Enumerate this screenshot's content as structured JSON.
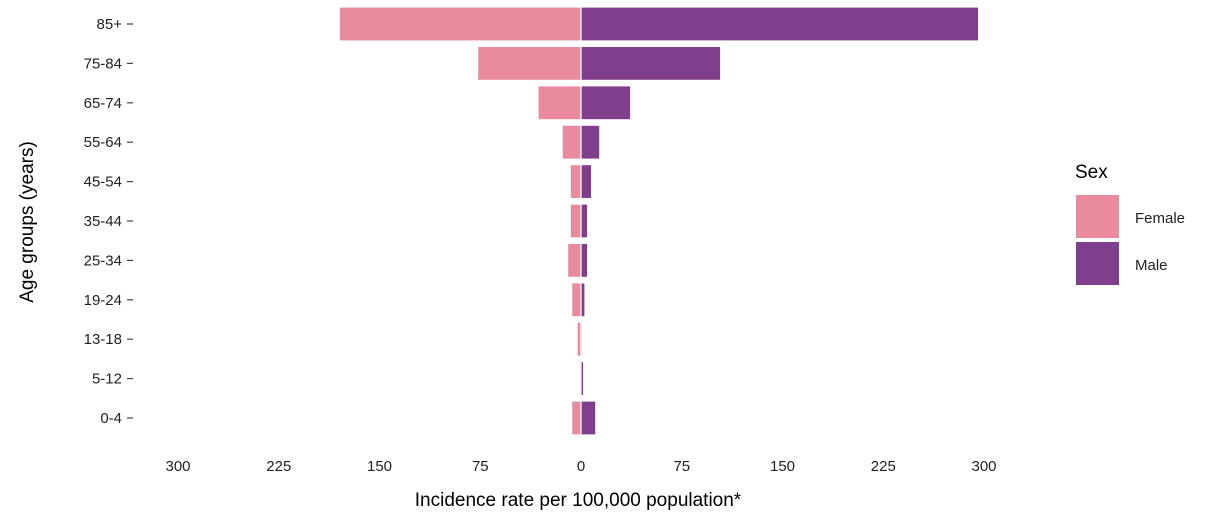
{
  "chart_data": {
    "type": "bar",
    "orientation": "horizontal-diverging",
    "title": "",
    "xlabel": "Incidence rate per 100,000 population*",
    "ylabel": "Age groups (years)",
    "xlim": [
      -300,
      300
    ],
    "x_ticks": [
      -300,
      -225,
      -150,
      -75,
      0,
      75,
      150,
      225,
      300
    ],
    "x_tick_labels": [
      "300",
      "225",
      "150",
      "75",
      "0",
      "75",
      "150",
      "225",
      "300"
    ],
    "categories": [
      "85+",
      "75-84",
      "65-74",
      "55-64",
      "45-54",
      "35-44",
      "25-34",
      "19-24",
      "13-18",
      "5-12",
      "0-4"
    ],
    "series": [
      {
        "name": "Female",
        "side": "left",
        "color": "#EA8A9E",
        "values": [
          180,
          77,
          32,
          14,
          8,
          8,
          10,
          7,
          3,
          1,
          7
        ]
      },
      {
        "name": "Male",
        "side": "right",
        "color": "#803F8D",
        "values": [
          296,
          104,
          37,
          14,
          8,
          5,
          5,
          3,
          1,
          2,
          11
        ]
      }
    ],
    "grid": false,
    "legend": {
      "title": "Sex",
      "position": "right"
    }
  }
}
